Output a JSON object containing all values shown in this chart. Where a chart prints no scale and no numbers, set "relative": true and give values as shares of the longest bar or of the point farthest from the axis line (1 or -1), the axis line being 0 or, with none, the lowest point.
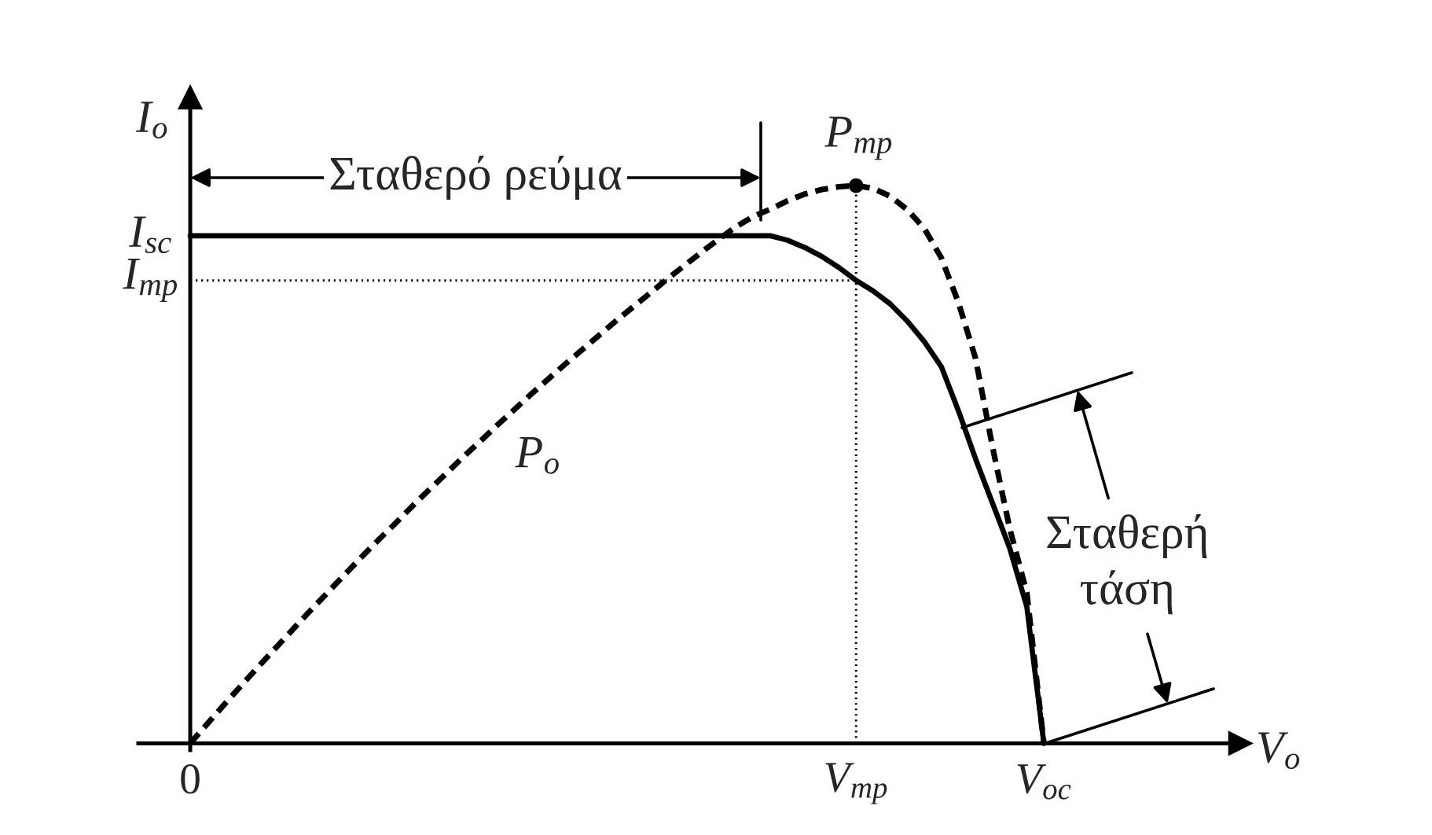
{
  "chart_data": {
    "type": "line",
    "relative": true,
    "xlabel": "V$_{o}$",
    "ylabel": "I$_{o}$",
    "categories": [
      "0",
      null,
      null,
      null,
      null,
      null,
      null,
      null,
      null,
      null,
      null,
      null,
      null,
      null,
      null,
      null,
      null,
      null,
      null,
      null,
      null,
      null,
      null,
      null,
      null,
      null,
      null,
      null,
      null,
      null,
      null,
      null,
      null,
      null,
      null,
      null,
      null,
      null,
      null,
      "V$_{mp}$",
      null,
      null,
      null,
      null,
      null,
      null,
      null,
      null,
      null,
      null,
      "V$_{oc}$"
    ],
    "series": [
      {
        "color": "#000000",
        "line_style": "solid",
        "values": [
          0.91,
          0.91,
          0.91,
          0.91,
          0.91,
          0.91,
          0.91,
          0.91,
          0.91,
          0.91,
          0.91,
          0.91,
          0.91,
          0.91,
          0.91,
          0.91,
          0.91,
          0.91,
          0.91,
          0.91,
          0.91,
          0.91,
          0.91,
          0.91,
          0.91,
          0.91,
          0.91,
          0.91,
          0.91,
          0.91,
          0.91,
          0.91,
          0.91,
          0.91,
          0.91,
          0.902,
          0.889,
          0.873,
          0.853,
          0.83,
          0.811,
          0.788,
          0.757,
          0.72,
          0.675,
          0.596,
          0.51,
          0.43,
          0.35,
          0.245,
          0
        ]
      },
      {
        "name": "P$_{o}$",
        "color": "#000000",
        "line_style": "dashed",
        "values": [
          0,
          0.035,
          0.07,
          0.104,
          0.138,
          0.171,
          0.204,
          0.237,
          0.269,
          0.301,
          0.333,
          0.364,
          0.394,
          0.425,
          0.455,
          0.484,
          0.514,
          0.542,
          0.571,
          0.599,
          0.627,
          0.654,
          0.681,
          0.707,
          0.733,
          0.759,
          0.784,
          0.809,
          0.834,
          0.858,
          0.882,
          0.905,
          0.927,
          0.945,
          0.958,
          0.973,
          0.985,
          0.993,
          0.998,
          1.0,
          0.995,
          0.981,
          0.957,
          0.923,
          0.87,
          0.79,
          0.69,
          0.53,
          0.385,
          0.27,
          0
        ]
      },
      {
        "color": "#000000",
        "line_style": "dotted",
        "x": [
          "0",
          "V$_{mp}$"
        ],
        "values": [
          0.83,
          0.83
        ]
      },
      {
        "color": "#000000",
        "line_style": "dotted",
        "x": [
          "V$_{mp}$",
          "V$_{mp}$"
        ],
        "values": [
          0,
          1.0
        ]
      },
      {
        "type": "scatter",
        "color": "#000000",
        "marker": "circle",
        "x": [
          "V$_{mp}$"
        ],
        "values": [
          1.0
        ]
      }
    ],
    "annotations": [
      {
        "text": "I$_{sc}$",
        "x": "0",
        "y": 0.91
      },
      {
        "text": "I$_{mp}$",
        "x": "0",
        "y": 0.83
      },
      {
        "text": "P$_{mp}$",
        "x": "V$_{mp}$",
        "y": 1.0
      },
      "Σταθερό ρεύμα",
      "Σταθερή τάση"
    ]
  }
}
